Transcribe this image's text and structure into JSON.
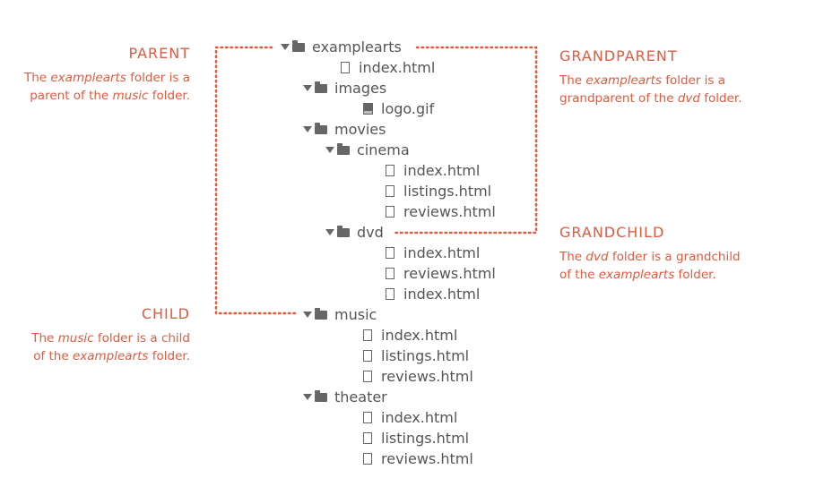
{
  "tree": [
    {
      "label": "examplearts",
      "type": "folder",
      "depth": 0
    },
    {
      "label": "index.html",
      "type": "file",
      "depth": 1
    },
    {
      "label": "images",
      "type": "folder",
      "depth": 1
    },
    {
      "label": "logo.gif",
      "type": "image",
      "depth": 2
    },
    {
      "label": "movies",
      "type": "folder",
      "depth": 1
    },
    {
      "label": "cinema",
      "type": "folder",
      "depth": 2
    },
    {
      "label": "index.html",
      "type": "file",
      "depth": 3
    },
    {
      "label": "listings.html",
      "type": "file",
      "depth": 3
    },
    {
      "label": "reviews.html",
      "type": "file",
      "depth": 3
    },
    {
      "label": "dvd",
      "type": "folder",
      "depth": 2
    },
    {
      "label": "index.html",
      "type": "file",
      "depth": 3
    },
    {
      "label": "reviews.html",
      "type": "file",
      "depth": 3
    },
    {
      "label": "index.html",
      "type": "file",
      "depth": 3
    },
    {
      "label": "music",
      "type": "folder",
      "depth": 1
    },
    {
      "label": "index.html",
      "type": "file",
      "depth": 2
    },
    {
      "label": "listings.html",
      "type": "file",
      "depth": 2
    },
    {
      "label": "reviews.html",
      "type": "file",
      "depth": 2
    },
    {
      "label": "theater",
      "type": "folder",
      "depth": 1
    },
    {
      "label": "index.html",
      "type": "file",
      "depth": 2
    },
    {
      "label": "listings.html",
      "type": "file",
      "depth": 2
    },
    {
      "label": "reviews.html",
      "type": "file",
      "depth": 2
    }
  ],
  "callouts": {
    "parent": {
      "title": "PARENT",
      "line1": [
        "The ",
        "examplearts",
        " folder is a"
      ],
      "line2": [
        "parent of the ",
        "music",
        " folder."
      ]
    },
    "grandparent": {
      "title": "GRANDPARENT",
      "line1": [
        "The ",
        "examplearts",
        " folder is a"
      ],
      "line2": [
        "grandparent of the ",
        "dvd",
        " folder."
      ]
    },
    "grandchild": {
      "title": "GRANDCHILD",
      "line1": [
        "The ",
        "dvd",
        " folder is a grandchild"
      ],
      "line2": [
        "of the ",
        "examplearts",
        " folder."
      ]
    },
    "child": {
      "title": "CHILD",
      "line1": [
        "The ",
        "music",
        " folder is a child"
      ],
      "line2": [
        "of the ",
        "examplearts",
        " folder."
      ]
    }
  },
  "colors": {
    "accent": "#e4593e",
    "text": "#555555",
    "icon": "#666666"
  }
}
